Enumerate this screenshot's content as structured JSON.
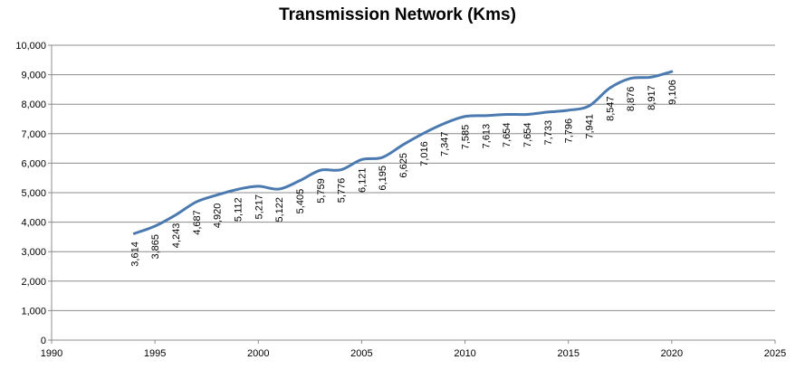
{
  "chart_data": {
    "type": "line",
    "title": "Transmission Network (Kms)",
    "xlabel": "",
    "ylabel": "",
    "xlim": [
      1990,
      2025
    ],
    "ylim": [
      0,
      10000
    ],
    "x_ticks": [
      1990,
      1995,
      2000,
      2005,
      2010,
      2015,
      2020,
      2025
    ],
    "y_ticks": [
      0,
      1000,
      2000,
      3000,
      4000,
      5000,
      6000,
      7000,
      8000,
      9000,
      10000
    ],
    "x_tick_labels": [
      "1990",
      "1995",
      "2000",
      "2005",
      "2010",
      "2015",
      "2020",
      "2025"
    ],
    "y_tick_labels": [
      "0",
      "1,000",
      "2,000",
      "3,000",
      "4,000",
      "5,000",
      "6,000",
      "7,000",
      "8,000",
      "9,000",
      "10,000"
    ],
    "grid": "horizontal",
    "legend": "none",
    "line_color": "#4a7ab0",
    "series": [
      {
        "x": [
          1994,
          1995,
          1996,
          1997,
          1998,
          1999,
          2000,
          2001,
          2002,
          2003,
          2004,
          2005,
          2006,
          2007,
          2008,
          2009,
          2010,
          2011,
          2012,
          2013,
          2014,
          2015,
          2016,
          2017,
          2018,
          2019,
          2020
        ],
        "values": [
          3614,
          3865,
          4243,
          4687,
          4920,
          5112,
          5217,
          5122,
          5405,
          5759,
          5776,
          6121,
          6195,
          6625,
          7016,
          7347,
          7585,
          7613,
          7654,
          7654,
          7733,
          7796,
          7941,
          8547,
          8876,
          8917,
          9106
        ],
        "labels": [
          "3,614",
          "3,865",
          "4,243",
          "4,687",
          "4,920",
          "5,112",
          "5,217",
          "5,122",
          "5,405",
          "5,759",
          "5,776",
          "6,121",
          "6,195",
          "6,625",
          "7,016",
          "7,347",
          "7,585",
          "7,613",
          "7,654",
          "7,654",
          "7,733",
          "7,796",
          "7,941",
          "8,547",
          "8,876",
          "8,917",
          "9,106"
        ]
      }
    ]
  }
}
